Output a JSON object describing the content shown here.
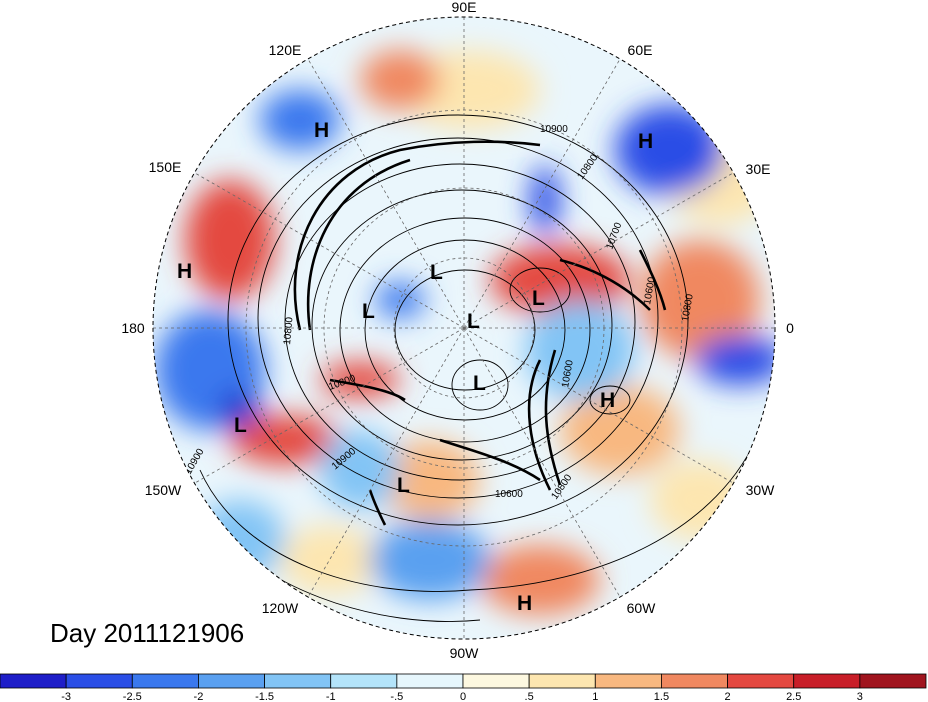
{
  "title": "Day 2011121906",
  "longitude_labels": [
    {
      "text": "90E",
      "name": "lon-label-90e"
    },
    {
      "text": "60E",
      "name": "lon-label-60e"
    },
    {
      "text": "30E",
      "name": "lon-label-30e"
    },
    {
      "text": "0",
      "name": "lon-label-0"
    },
    {
      "text": "30W",
      "name": "lon-label-30w"
    },
    {
      "text": "60W",
      "name": "lon-label-60w"
    },
    {
      "text": "90W",
      "name": "lon-label-90w"
    },
    {
      "text": "120W",
      "name": "lon-label-120w"
    },
    {
      "text": "150W",
      "name": "lon-label-150w"
    },
    {
      "text": "180",
      "name": "lon-label-180"
    },
    {
      "text": "150E",
      "name": "lon-label-150e"
    },
    {
      "text": "120E",
      "name": "lon-label-120e"
    }
  ],
  "pressure_centers": [
    "H",
    "H",
    "H",
    "H",
    "H",
    "L",
    "L",
    "L",
    "L",
    "L",
    "L",
    "L"
  ],
  "contour_labels": [
    "10900",
    "10800",
    "10700",
    "10600",
    "10800",
    "10800",
    "10600",
    "10600",
    "10800",
    "10900",
    "10900",
    "10800"
  ],
  "colorbar": {
    "ticks": [
      "-3",
      "-2.5",
      "-2",
      "-1.5",
      "-1",
      "-.5",
      "0",
      ".5",
      "1",
      "1.5",
      "2",
      "2.5",
      "3"
    ],
    "colors": [
      "#1e1ec8",
      "#2a4ee6",
      "#3a78ee",
      "#5aa0f0",
      "#82c4f5",
      "#b4e4fa",
      "#e6f6fc",
      "#fdf8e0",
      "#fde6b0",
      "#f8b880",
      "#f08860",
      "#e44840",
      "#c81e28",
      "#a0141e"
    ]
  }
}
